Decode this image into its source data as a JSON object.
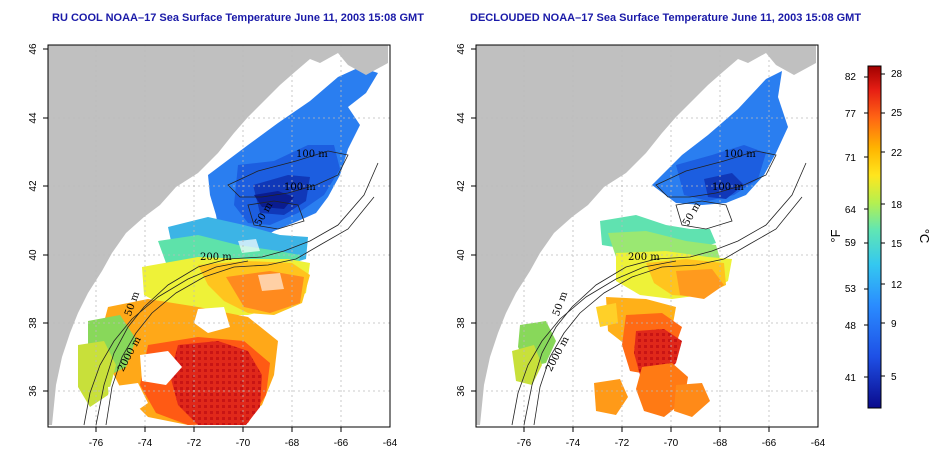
{
  "panels": [
    {
      "title": "RU COOL NOAA–17 Sea Surface Temperature June 11, 2003 15:08 GMT",
      "contour_labels": [
        "100 m",
        "100 m",
        "50 m",
        "200 m",
        "50 m",
        "2000 m"
      ]
    },
    {
      "title": "DECLOUDED NOAA–17 Sea Surface Temperature June 11, 2003 15:08 GMT",
      "contour_labels": [
        "100 m",
        "100 m",
        "50 m",
        "200 m",
        "50 m",
        "2000 m"
      ]
    }
  ],
  "axes": {
    "x_ticks": [
      "-76",
      "-74",
      "-72",
      "-70",
      "-68",
      "-66",
      "-64"
    ],
    "y_ticks": [
      "36",
      "38",
      "40",
      "42",
      "44",
      "46"
    ]
  },
  "colorbar": {
    "fahrenheit_ticks": [
      "82",
      "77",
      "71",
      "64",
      "59",
      "53",
      "48",
      "41"
    ],
    "celsius_ticks": [
      "28",
      "25",
      "22",
      "18",
      "15",
      "12",
      "9",
      "5"
    ],
    "fahrenheit_unit": "°F",
    "celsius_unit": "°C"
  },
  "colors": {
    "land": "#c0c0c0",
    "title": "#1a1aa8",
    "cold": "#00008b",
    "warm": "#b00000"
  }
}
